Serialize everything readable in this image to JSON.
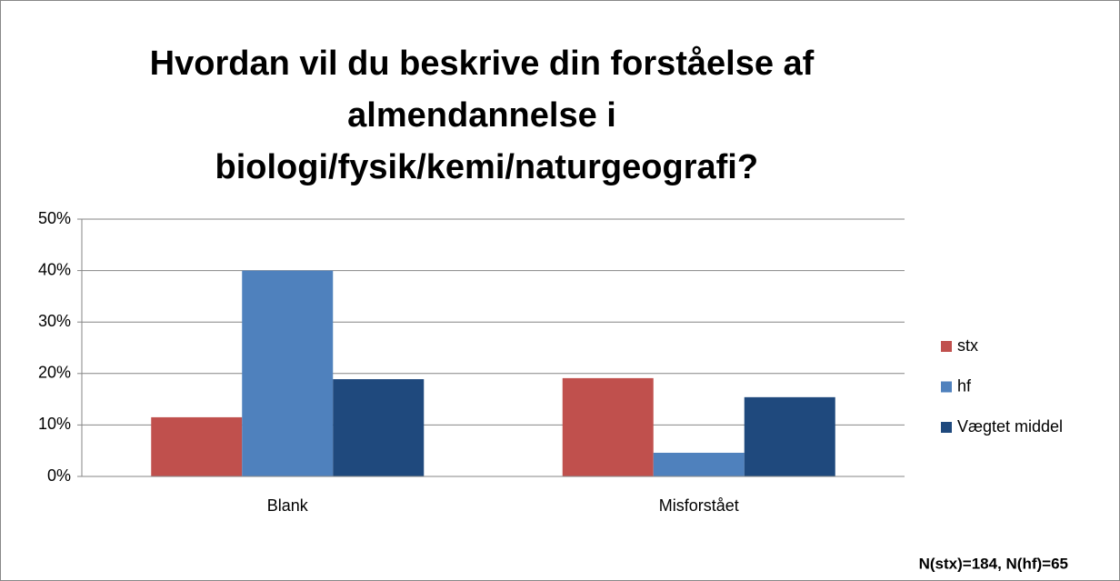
{
  "chart_data": {
    "type": "bar",
    "title": "Hvordan vil du beskrive din forståelse af\nalmendannelse i\n biologi/fysik/kemi/naturgeografi?",
    "categories": [
      "Blank",
      "Misforstået"
    ],
    "series": [
      {
        "name": "stx",
        "color": "#c0504d",
        "values": [
          11.5,
          19.1
        ]
      },
      {
        "name": "hf",
        "color": "#4f81bd",
        "values": [
          40,
          4.6
        ]
      },
      {
        "name": "Vægtet middel",
        "color": "#1f497d",
        "values": [
          18.9,
          15.4
        ]
      }
    ],
    "ylim": [
      0,
      50
    ],
    "yticks": [
      {
        "value": 0,
        "label": "0%"
      },
      {
        "value": 10,
        "label": "10%"
      },
      {
        "value": 20,
        "label": "20%"
      },
      {
        "value": 30,
        "label": "30%"
      },
      {
        "value": 40,
        "label": "40%"
      },
      {
        "value": 50,
        "label": "50%"
      }
    ],
    "grid": true,
    "legend": "right",
    "annotation": "N(stx)=184, N(hf)=65"
  }
}
